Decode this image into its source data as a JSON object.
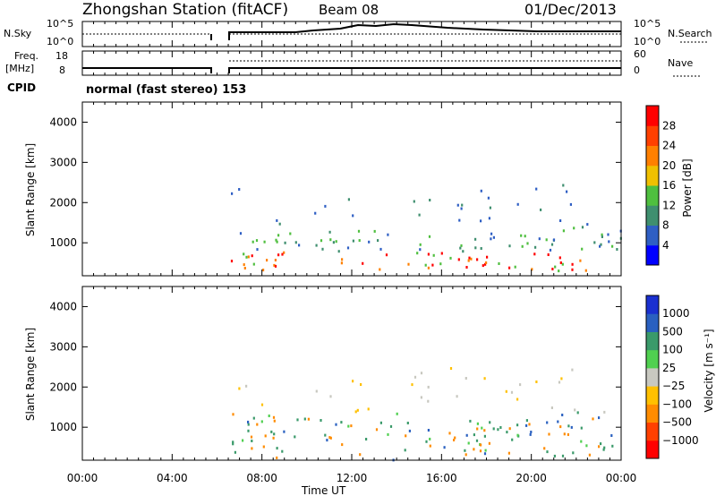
{
  "header": {
    "title": "Zhongshan Station (fitACF)",
    "beam": "Beam 08",
    "date": "01/Dec/2013"
  },
  "nsky_panel": {
    "left_label": "N.Sky",
    "left_top": "10^5",
    "left_bottom": "10^0",
    "right_label": "N.Search",
    "right_top": "10^5",
    "right_bottom": "10^0"
  },
  "freq_panel": {
    "label_line1": "Freq.",
    "label_line2": "[MHz]",
    "left_top": "18",
    "left_bottom": "8",
    "right_label": "Nave",
    "right_top": "60",
    "right_bottom": "0"
  },
  "cpid": {
    "label": "CPID",
    "value": "normal (fast stereo) 153"
  },
  "colors": {
    "power": [
      "#0000ff",
      "#2f5fc4",
      "#3f8f6f",
      "#4fbf3f",
      "#f0c000",
      "#ff8000",
      "#ff4000",
      "#ff0000"
    ],
    "velocity": [
      "#ff0000",
      "#ff4000",
      "#ff8c00",
      "#ffc000",
      "#c8c8c0",
      "#50d050",
      "#3a9a6a",
      "#2a60c0",
      "#1a30d0"
    ]
  },
  "chart_data": [
    {
      "type": "heatmap",
      "name": "power",
      "ylabel": "Slant Range [km]",
      "xlabel": "",
      "yticks": [
        "1000",
        "2000",
        "3000",
        "4000"
      ],
      "ylim": [
        180,
        4500
      ],
      "xlim": [
        0,
        24
      ],
      "colorbar_label": "Power [dB]",
      "colorbar_ticks": [
        "4",
        "8",
        "12",
        "16",
        "20",
        "24",
        "28"
      ],
      "colorbar_range": [
        0,
        32
      ]
    },
    {
      "type": "heatmap",
      "name": "velocity",
      "ylabel": "Slant Range [km]",
      "xlabel": "Time UT",
      "yticks": [
        "1000",
        "2000",
        "3000",
        "4000"
      ],
      "xticks": [
        "00:00",
        "04:00",
        "08:00",
        "12:00",
        "16:00",
        "20:00",
        "00:00"
      ],
      "ylim": [
        180,
        4500
      ],
      "xlim": [
        0,
        24
      ],
      "colorbar_label": "Velocity [m s⁻¹]",
      "colorbar_ticks": [
        "1000",
        "500",
        "100",
        "25",
        "−25",
        "−100",
        "−500",
        "−1000"
      ]
    }
  ]
}
